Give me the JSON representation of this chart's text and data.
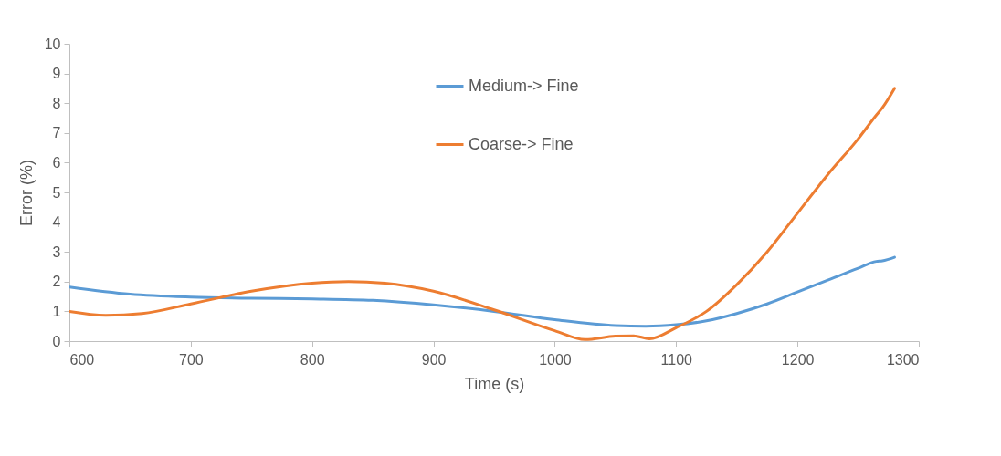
{
  "chart_data": {
    "type": "line",
    "xlabel": "Time (s)",
    "ylabel": "Error (%)",
    "xlim": [
      600,
      1300
    ],
    "xticks": [
      600,
      700,
      800,
      900,
      1000,
      1100,
      1200,
      1300
    ],
    "ylim": [
      0,
      10
    ],
    "yticks": [
      0,
      1,
      2,
      3,
      4,
      5,
      6,
      7,
      8,
      9,
      10
    ],
    "grid": false,
    "legend": "top right",
    "line_style": "solid",
    "series": [
      {
        "name": "Medium-> Fine",
        "color": "#5b9bd5",
        "x": [
          600,
          650,
          700,
          750,
          800,
          850,
          900,
          950,
          1000,
          1050,
          1075,
          1100,
          1125,
          1150,
          1175,
          1200,
          1225,
          1250,
          1265,
          1270,
          1280
        ],
        "values": [
          1.82,
          1.58,
          1.48,
          1.44,
          1.42,
          1.37,
          1.22,
          1.0,
          0.72,
          0.52,
          0.5,
          0.55,
          0.68,
          0.93,
          1.25,
          1.65,
          2.05,
          2.45,
          2.68,
          2.7,
          2.82
        ]
      },
      {
        "name": "Coarse-> Fine",
        "color": "#ed7d31",
        "x": [
          600,
          630,
          660,
          700,
          750,
          800,
          830,
          860,
          900,
          950,
          1000,
          1025,
          1050,
          1065,
          1078,
          1100,
          1125,
          1150,
          1175,
          1200,
          1225,
          1250,
          1265,
          1270,
          1280
        ],
        "values": [
          1.0,
          0.87,
          0.93,
          1.25,
          1.68,
          1.95,
          2.0,
          1.95,
          1.68,
          1.05,
          0.35,
          0.05,
          0.17,
          0.18,
          0.08,
          0.45,
          1.0,
          1.9,
          3.0,
          4.3,
          5.6,
          6.8,
          7.6,
          7.85,
          8.5
        ]
      }
    ]
  }
}
